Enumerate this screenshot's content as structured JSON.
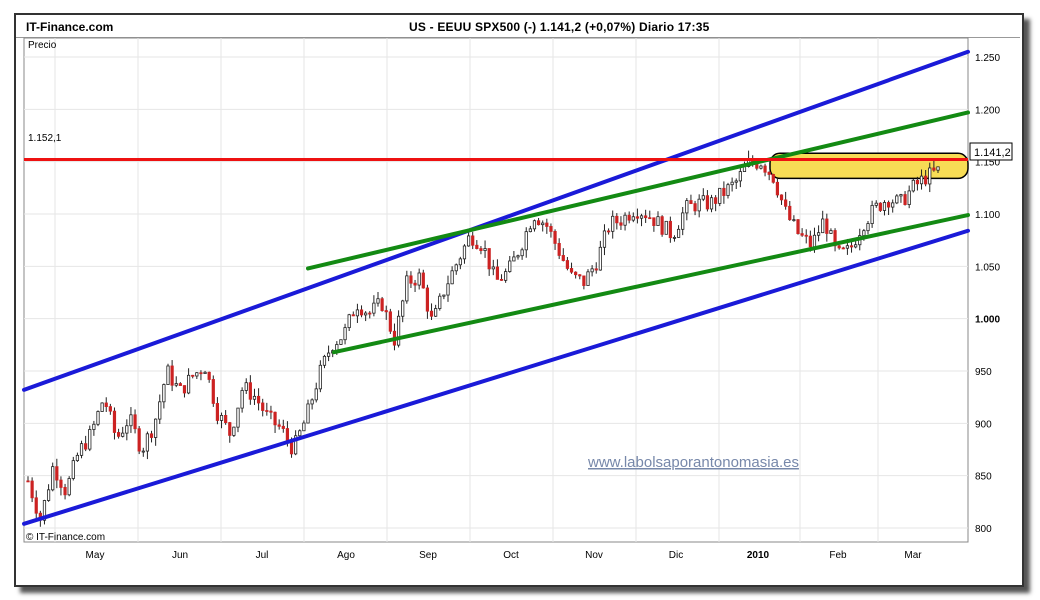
{
  "header": {
    "brand": "IT-Finance.com",
    "ticker": "US - EEUU SPX500 (-)   1.141,2 (+0,07%)   Diario  17:35"
  },
  "chart_data": {
    "type": "candlestick",
    "title": "US - EEUU SPX500 (-)",
    "ylabel": "Precio",
    "ylim": [
      790,
      1265
    ],
    "y_ticks": [
      "800",
      "850",
      "900",
      "950",
      "1.000",
      "1.050",
      "1.100",
      "1.150",
      "1.200",
      "1.250"
    ],
    "x_ticks": [
      "May",
      "Jun",
      "Jul",
      "Ago",
      "Sep",
      "Oct",
      "Nov",
      "Dic",
      "2010",
      "Feb",
      "Mar"
    ],
    "last_price_label": "1.141,2",
    "last_change": "+0,07%",
    "resistance": {
      "value": 1152.1,
      "label": "1.152,1",
      "color": "#ee1111"
    },
    "price_path": [
      845,
      808,
      860,
      835,
      872,
      890,
      925,
      885,
      905,
      875,
      900,
      950,
      930,
      945,
      955,
      910,
      890,
      935,
      925,
      905,
      895,
      875,
      905,
      945,
      975,
      985,
      1015,
      1005,
      1015,
      980,
      1035,
      1040,
      995,
      1030,
      1055,
      1080,
      1070,
      1035,
      1045,
      1070,
      1100,
      1090,
      1065,
      1040,
      1035,
      1055,
      1090,
      1095,
      1105,
      1100,
      1090,
      1080,
      1105,
      1110,
      1110,
      1120,
      1130,
      1148,
      1150,
      1135,
      1100,
      1080,
      1070,
      1095,
      1060,
      1065,
      1090,
      1105,
      1115,
      1110,
      1125,
      1135,
      1141
    ],
    "channels": [
      {
        "name": "blue-upper",
        "color": "#1a1ad8",
        "from": [
          "2009-04",
          932
        ],
        "to": [
          "2010-03",
          1255
        ]
      },
      {
        "name": "blue-lower",
        "color": "#1a1ad8",
        "from": [
          "2009-04",
          804
        ],
        "to": [
          "2010-03",
          1084
        ]
      },
      {
        "name": "green-upper",
        "color": "#138a13",
        "from": [
          "2009-07",
          1048
        ],
        "to": [
          "2010-03",
          1197
        ]
      },
      {
        "name": "green-lower",
        "color": "#138a13",
        "from": [
          "2009-08",
          968
        ],
        "to": [
          "2010-03",
          1099
        ]
      }
    ],
    "highlight": {
      "color": "#f7dc55",
      "range": [
        1134,
        1158
      ]
    },
    "watermark": "www.labolsaporantonomasia.es",
    "copyright": "© IT-Finance.com"
  }
}
